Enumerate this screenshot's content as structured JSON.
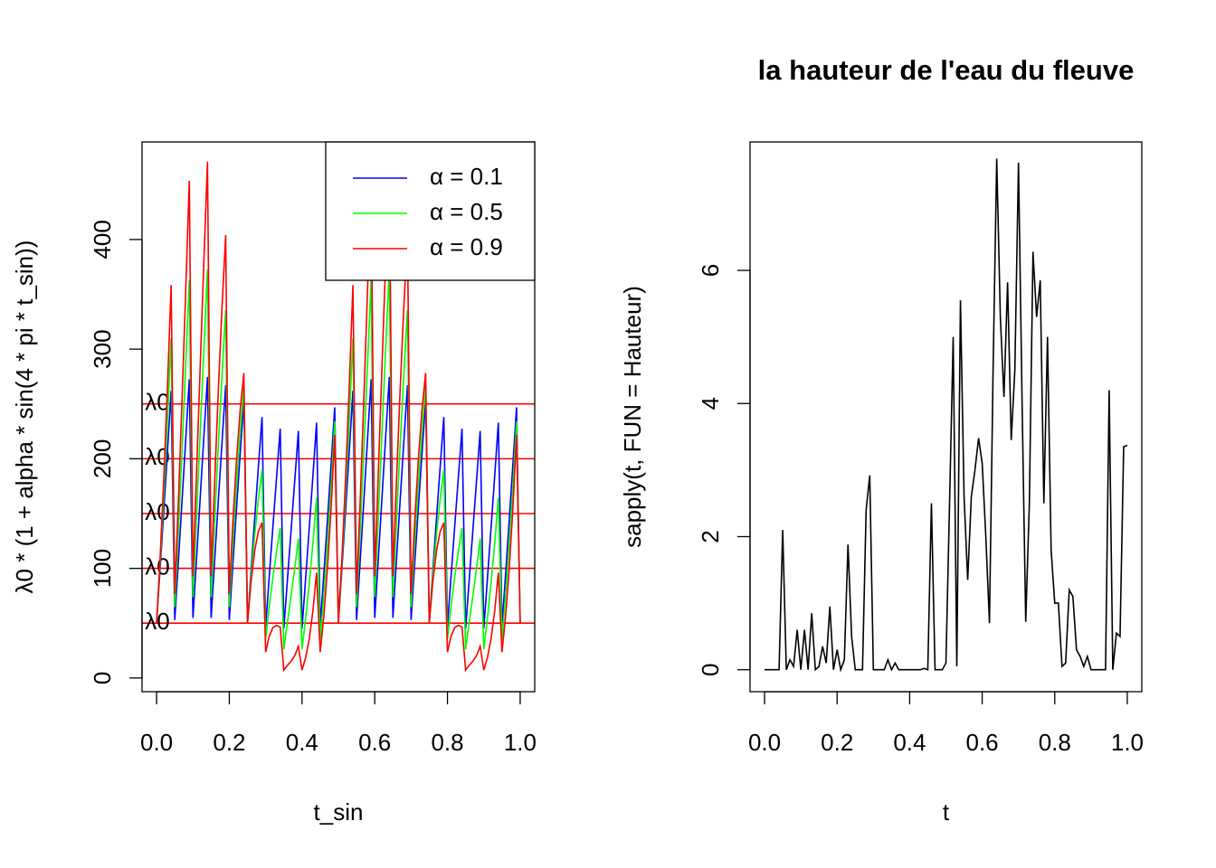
{
  "chart_data": [
    {
      "type": "line",
      "xlabel": "t_sin",
      "ylabel": "λ0 * (1 + alpha * sin(4 * pi * t_sin))",
      "x": [
        0,
        0.01,
        0.02,
        0.03,
        0.04,
        0.05,
        0.06,
        0.07,
        0.08,
        0.09,
        0.1,
        0.11,
        0.12,
        0.13,
        0.14,
        0.15,
        0.16,
        0.17,
        0.18,
        0.19,
        0.2,
        0.21,
        0.22,
        0.23,
        0.24,
        0.25,
        0.26,
        0.27,
        0.28,
        0.29,
        0.3,
        0.31,
        0.32,
        0.33,
        0.34,
        0.35,
        0.36,
        0.37,
        0.38,
        0.39,
        0.4,
        0.41,
        0.42,
        0.43,
        0.44,
        0.45,
        0.46,
        0.47,
        0.48,
        0.49,
        0.5,
        0.51,
        0.52,
        0.53,
        0.54,
        0.55,
        0.56,
        0.57,
        0.58,
        0.59,
        0.6,
        0.61,
        0.62,
        0.63,
        0.64,
        0.65,
        0.66,
        0.67,
        0.68,
        0.69,
        0.7,
        0.71,
        0.72,
        0.73,
        0.74,
        0.75,
        0.76,
        0.77,
        0.78,
        0.79,
        0.8,
        0.81,
        0.82,
        0.83,
        0.84,
        0.85,
        0.86,
        0.87,
        0.88,
        0.89,
        0.9,
        0.91,
        0.92,
        0.93,
        0.94,
        0.95,
        0.96,
        0.97,
        0.98,
        0.99,
        1
      ],
      "series": [
        {
          "name": "α = 0.1",
          "color": "#0000ff",
          "values": [
            50,
            101.3,
            153.7,
            207.4,
            262.0,
            52.9,
            106.8,
            161.6,
            216.9,
            272.6,
            54.8,
            109.8,
            165.0,
            220.0,
            274.6,
            54.8,
            109.0,
            162.7,
            215.4,
            267.1,
            52.9,
            104.8,
            155.5,
            205.0,
            253.1,
            50,
            98.7,
            146.3,
            192.6,
            238.0,
            47.1,
            93.2,
            138.4,
            183.1,
            227.4,
            45.2,
            90.2,
            135.0,
            180.0,
            225.4,
            45.2,
            91.0,
            137.3,
            184.6,
            232.9,
            47.1,
            95.2,
            144.5,
            195.0,
            246.9,
            50,
            101.3,
            153.7,
            207.4,
            262.0,
            52.9,
            106.8,
            161.6,
            216.9,
            272.6,
            54.8,
            109.8,
            165.0,
            220.0,
            274.6,
            54.8,
            109.0,
            162.7,
            215.4,
            267.1,
            52.9,
            104.8,
            155.5,
            205.0,
            253.1,
            50,
            98.7,
            146.3,
            192.6,
            238.0,
            47.1,
            93.2,
            138.4,
            183.1,
            227.4,
            45.2,
            90.2,
            135.0,
            180.0,
            225.4,
            45.2,
            91.0,
            137.3,
            184.6,
            232.9,
            47.1,
            95.2,
            144.5,
            195.0,
            246.9,
            50
          ]
        },
        {
          "name": "α = 0.5",
          "color": "#00ff00",
          "values": [
            50,
            106.3,
            168.7,
            236.8,
            310.2,
            64.7,
            134.2,
            207.8,
            284.4,
            363.1,
            73.8,
            149.1,
            224.9,
            299.8,
            372.8,
            73.8,
            145.2,
            213.3,
            277.1,
            335.6,
            64.7,
            124.1,
            177.6,
            224.9,
            265.7,
            50,
            93.7,
            131.3,
            163.2,
            189.8,
            35.3,
            65.8,
            92.2,
            115.6,
            136.9,
            26.2,
            50.9,
            75.1,
            100.2,
            127.2,
            26.2,
            54.8,
            86.7,
            122.9,
            164.4,
            35.3,
            75.9,
            122.4,
            175.1,
            234.3,
            50,
            106.3,
            168.7,
            236.8,
            310.2,
            64.7,
            134.2,
            207.8,
            284.4,
            363.1,
            73.8,
            149.1,
            224.9,
            299.8,
            372.8,
            73.8,
            145.2,
            213.3,
            277.1,
            335.6,
            64.7,
            124.1,
            177.6,
            224.9,
            265.7,
            50,
            93.7,
            131.3,
            163.2,
            189.8,
            35.3,
            65.8,
            92.2,
            115.6,
            136.9,
            26.2,
            50.9,
            75.1,
            100.2,
            127.2,
            26.2,
            54.8,
            86.7,
            122.9,
            164.4,
            35.3,
            75.9,
            122.4,
            175.1,
            234.3,
            50
          ]
        },
        {
          "name": "α = 0.9",
          "color": "#ff0000",
          "values": [
            50,
            111.3,
            183.6,
            266.3,
            358.4,
            76.5,
            161.6,
            254.0,
            352.0,
            453.6,
            92.8,
            188.4,
            284.7,
            379.6,
            471.0,
            92.8,
            181.4,
            264.0,
            338.7,
            404.0,
            76.5,
            143.4,
            199.7,
            244.8,
            278.2,
            50,
            88.7,
            116.4,
            133.7,
            141.6,
            23.5,
            38.4,
            46.0,
            48.0,
            46.4,
            7.2,
            11.6,
            15.3,
            20.4,
            29.0,
            7.2,
            18.6,
            36.0,
            61.3,
            96.0,
            23.5,
            56.6,
            100.3,
            155.2,
            221.8,
            50,
            111.3,
            183.6,
            266.3,
            358.4,
            76.5,
            161.6,
            254.0,
            352.0,
            453.6,
            92.8,
            188.4,
            284.7,
            379.6,
            471.0,
            92.8,
            181.4,
            264.0,
            338.7,
            404.0,
            76.5,
            143.4,
            199.7,
            244.8,
            278.2,
            50,
            88.7,
            116.4,
            133.7,
            141.6,
            23.5,
            38.4,
            46.0,
            48.0,
            46.4,
            7.2,
            11.6,
            15.3,
            20.4,
            29.0,
            7.2,
            18.6,
            36.0,
            61.3,
            96.0,
            23.5,
            56.6,
            100.3,
            155.2,
            221.8,
            50
          ]
        }
      ],
      "hlines": {
        "values": [
          50,
          100,
          150,
          200,
          250
        ],
        "labels": [
          "λ0",
          "λ0",
          "λ0",
          "λ0",
          "λ0"
        ],
        "color": "#ff0000"
      },
      "xlim": [
        -0.04,
        1.04
      ],
      "ylim": [
        -12.5,
        489
      ],
      "xticks": [
        {
          "value": 0,
          "label": "0.0"
        },
        0.2,
        0.4,
        0.6,
        0.8,
        {
          "value": 1,
          "label": "1.0"
        }
      ],
      "yticks": [
        0,
        100,
        200,
        300,
        400
      ],
      "legend": "topright"
    },
    {
      "type": "line",
      "title": "la hauteur de l'eau du fleuve",
      "xlabel": "t",
      "ylabel": "sapply(t, FUN = Hauteur)",
      "x": [
        0,
        0.01,
        0.02,
        0.03,
        0.04,
        0.05,
        0.06,
        0.07,
        0.08,
        0.09,
        0.1,
        0.11,
        0.12,
        0.13,
        0.14,
        0.15,
        0.16,
        0.17,
        0.18,
        0.19,
        0.2,
        0.21,
        0.22,
        0.23,
        0.24,
        0.25,
        0.26,
        0.27,
        0.28,
        0.29,
        0.3,
        0.31,
        0.32,
        0.33,
        0.34,
        0.35,
        0.36,
        0.37,
        0.38,
        0.39,
        0.4,
        0.41,
        0.42,
        0.43,
        0.44,
        0.45,
        0.46,
        0.47,
        0.48,
        0.49,
        0.5,
        0.51,
        0.52,
        0.53,
        0.54,
        0.55,
        0.56,
        0.57,
        0.58,
        0.59,
        0.6,
        0.61,
        0.62,
        0.63,
        0.64,
        0.65,
        0.66,
        0.67,
        0.68,
        0.69,
        0.7,
        0.71,
        0.72,
        0.73,
        0.74,
        0.75,
        0.76,
        0.77,
        0.78,
        0.79,
        0.8,
        0.81,
        0.82,
        0.83,
        0.84,
        0.85,
        0.86,
        0.87,
        0.88,
        0.89,
        0.9,
        0.91,
        0.92,
        0.93,
        0.94,
        0.95,
        0.96,
        0.97,
        0.98,
        0.99,
        1
      ],
      "series": [
        {
          "color": "#000000",
          "values": [
            0,
            0,
            0,
            0,
            0,
            2.1,
            0,
            0.15,
            0.05,
            0.6,
            0,
            0.6,
            0,
            0.85,
            0,
            0.05,
            0.35,
            0.1,
            0.95,
            0,
            0.3,
            0,
            0.15,
            1.88,
            0.5,
            0,
            0,
            0,
            2.4,
            2.92,
            0,
            0,
            0,
            0,
            0.15,
            0,
            0.1,
            0,
            0,
            0,
            0,
            0,
            0,
            0,
            0.02,
            0,
            2.5,
            0,
            0,
            0,
            0.1,
            2.5,
            5.0,
            0.05,
            5.55,
            2.6,
            1.35,
            2.6,
            3.0,
            3.48,
            3.1,
            2.0,
            0.7,
            4.5,
            7.68,
            5.3,
            4.1,
            5.82,
            3.45,
            4.5,
            7.62,
            4.0,
            0.72,
            2.5,
            6.28,
            5.3,
            5.85,
            2.5,
            5.0,
            1.8,
            1.0,
            1.0,
            0.05,
            0.1,
            1.2,
            1.1,
            0.3,
            0.2,
            0.05,
            0.2,
            0,
            0,
            0,
            0,
            0,
            4.2,
            0,
            0.55,
            0.5,
            3.35,
            3.37
          ]
        }
      ],
      "xlim": [
        -0.04,
        1.04
      ],
      "ylim": [
        -0.33,
        7.93
      ],
      "xticks": [
        {
          "value": 0,
          "label": "0.0"
        },
        0.2,
        0.4,
        0.6,
        0.8,
        {
          "value": 1,
          "label": "1.0"
        }
      ],
      "yticks": [
        0,
        2,
        4,
        6
      ]
    }
  ]
}
